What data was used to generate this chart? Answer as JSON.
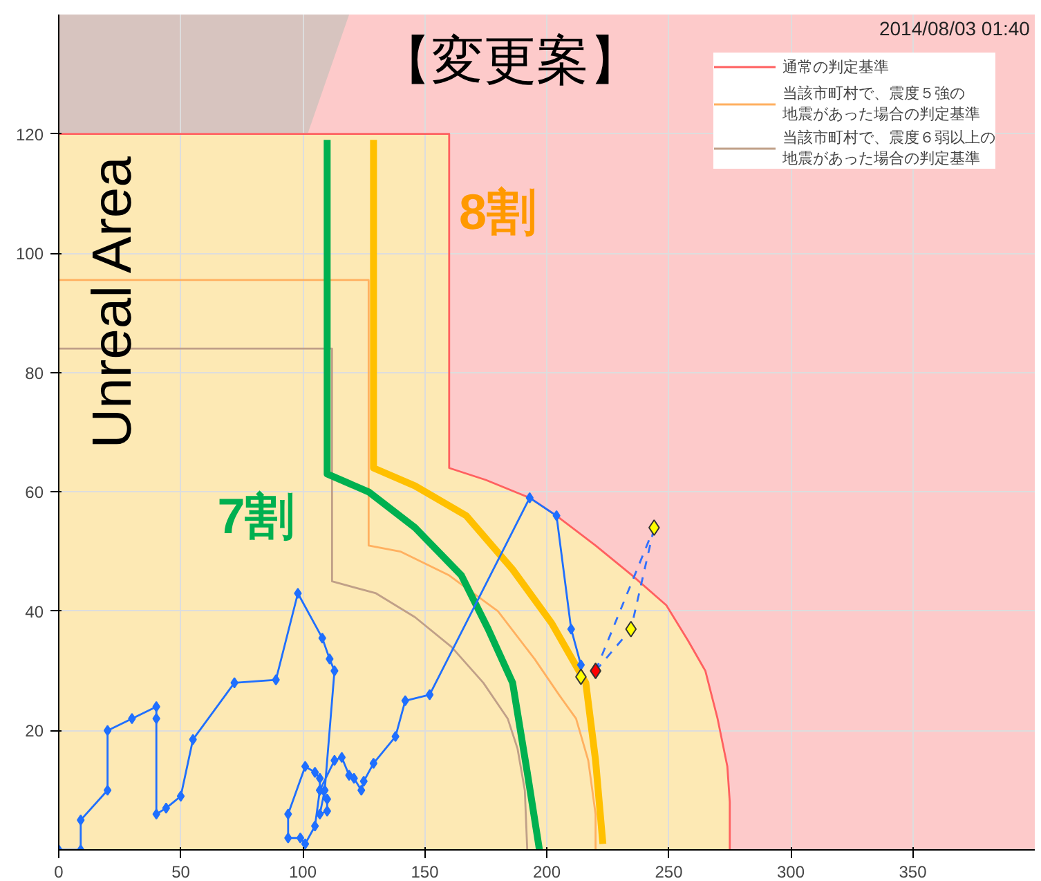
{
  "chart_data": {
    "type": "line",
    "xlim": [
      0,
      400
    ],
    "ylim": [
      0,
      140
    ],
    "xticks": [
      0,
      50,
      100,
      150,
      200,
      250,
      300,
      350
    ],
    "yticks": [
      20,
      40,
      60,
      80,
      100,
      120
    ],
    "grid": true,
    "legend": "top right",
    "annotations": [
      "【変更案】",
      "2014/08/03 01:40",
      "Unreal Area",
      "8割",
      "7割"
    ],
    "bands": [
      {
        "axis": "y",
        "from": 0,
        "to": 140,
        "color": "#fdcaca"
      }
    ],
    "series": [
      {
        "type": "area",
        "x": [
          0,
          119
        ],
        "values": [
          0,
          140
        ],
        "color": "#c9c2bb"
      },
      {
        "type": "area",
        "name": "通常の判定基準",
        "color": "#ff6060",
        "colors": [
          "#fde9b4",
          "#fde9b4",
          "#fde9b4",
          "#fde9b4",
          "#fde9b4",
          "#fde9b4",
          "#fde9b4",
          "#fde9b4",
          "#fde9b4",
          "#fde9b4",
          "#fde9b4",
          "#fde9b4",
          "#fde9b4",
          "#fde9b4",
          "#fde9b4"
        ],
        "x": [
          0,
          160,
          160,
          175,
          193,
          204,
          220,
          235,
          249,
          258,
          265,
          270,
          274,
          275,
          275
        ],
        "values": [
          120,
          120,
          64,
          62,
          59,
          56,
          51,
          46,
          41,
          35,
          30,
          22,
          14,
          8,
          0
        ]
      },
      {
        "name": "当該市町村で、震度５強の地震があった場合の判定基準",
        "color": "#ffb060",
        "x": [
          0,
          127,
          127,
          140,
          160,
          180,
          195,
          205,
          212,
          217,
          220,
          220
        ],
        "values": [
          95.5,
          95.5,
          51,
          50,
          46,
          40,
          32,
          26,
          22,
          15,
          6,
          0
        ]
      },
      {
        "name": "当該市町村で、震度６弱以上の地震があった場合の判定基準",
        "color": "#c0a088",
        "x": [
          0,
          112,
          112,
          130,
          146,
          161,
          174,
          184,
          188,
          191,
          192
        ],
        "values": [
          84,
          84,
          45,
          43,
          39,
          34,
          28,
          22,
          17,
          10,
          0
        ]
      },
      {
        "color": "#00b050",
        "x": [
          110,
          110,
          127,
          146,
          165,
          176,
          186,
          192,
          197
        ],
        "values": [
          119,
          63,
          60,
          54,
          46,
          37,
          28,
          13,
          0
        ]
      },
      {
        "color": "#ffc000",
        "x": [
          129,
          129,
          146,
          167,
          186,
          202,
          216,
          220,
          223
        ],
        "values": [
          119,
          64,
          61,
          56,
          47,
          38,
          28,
          15,
          1
        ]
      },
      {
        "color": "#1f6fff",
        "marker": "diamond",
        "x": [
          0,
          9,
          9,
          20,
          20,
          30,
          40,
          40,
          40,
          44,
          50,
          55,
          72,
          89,
          98,
          108,
          111,
          113,
          109,
          107,
          110,
          110,
          107,
          107,
          105,
          101,
          94,
          94,
          99,
          101,
          105,
          107,
          113,
          116,
          119,
          121,
          124,
          125,
          129,
          138,
          142,
          152,
          193,
          204,
          210,
          214
        ],
        "values": [
          0,
          0,
          5,
          10,
          20,
          22,
          24,
          22,
          6,
          7,
          9,
          18.5,
          28,
          28.5,
          43,
          35.5,
          32,
          30,
          10,
          6,
          6.5,
          8.5,
          10,
          12,
          13,
          14,
          6,
          2,
          2,
          1,
          4,
          10,
          15,
          15.5,
          12.5,
          12,
          10,
          11.5,
          14.5,
          19,
          25,
          26,
          59,
          56,
          37,
          31
        ]
      },
      {
        "color": "#3070ff",
        "line_style": "dashed",
        "x": [
          220,
          234.5,
          244
        ],
        "values": [
          30,
          37,
          54
        ]
      },
      {
        "color": "#3070ff",
        "line_style": "dashed",
        "x": [
          220,
          244
        ],
        "values": [
          30,
          54
        ]
      },
      {
        "type": "scatter",
        "marker": "diamond",
        "color": "#ffff00",
        "x": [
          214,
          234.5,
          244
        ],
        "values": [
          29,
          37,
          54
        ]
      },
      {
        "type": "scatter",
        "marker": "diamond",
        "color": "#ff0000",
        "x": [
          220
        ],
        "values": [
          30
        ]
      }
    ]
  }
}
